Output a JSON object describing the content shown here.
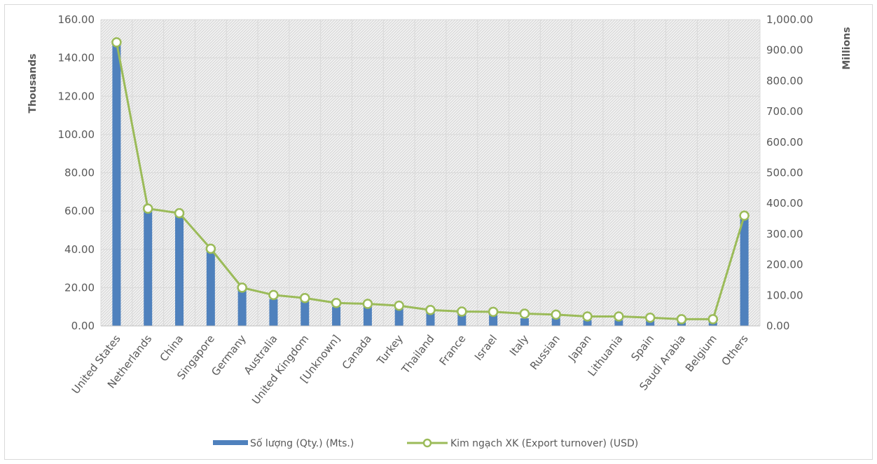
{
  "chart_data": {
    "type": "bar",
    "categories": [
      "United States",
      "Netherlands",
      "China",
      "Singapore",
      "Germany",
      "Australia",
      "United Kingdom",
      "[Unknown]",
      "Canada",
      "Turkey",
      "Thailand",
      "France",
      "Israel",
      "Italy",
      "Russian",
      "Japan",
      "Lithuania",
      "Spain",
      "Saudi Arabia",
      "Belgium",
      "Others"
    ],
    "series": [
      {
        "name": "Số lượng (Qty.) (Mts.)",
        "type": "bar",
        "axis": "left",
        "color": "#4f81bd",
        "values": [
          148,
          61,
          58,
          39,
          19,
          14,
          13,
          10,
          10,
          9,
          7,
          6,
          6,
          4,
          4,
          3,
          3,
          3,
          2,
          2,
          56
        ]
      },
      {
        "name": "Kim ngạch XK (Export turnover) (USD)",
        "type": "line",
        "axis": "right",
        "color": "#9bbb59",
        "values": [
          926,
          383,
          368,
          252,
          125,
          101,
          91,
          75,
          72,
          66,
          52,
          47,
          46,
          40,
          37,
          31,
          31,
          27,
          22,
          22,
          360
        ]
      }
    ],
    "y_left": {
      "label": "Thousands",
      "min": 0,
      "max": 160,
      "step": 20,
      "ticks": [
        "0.00",
        "20.00",
        "40.00",
        "60.00",
        "80.00",
        "100.00",
        "120.00",
        "140.00",
        "160.00"
      ]
    },
    "y_right": {
      "label": "Millions",
      "min": 0,
      "max": 1000,
      "step": 100,
      "ticks": [
        "0.00",
        "100.00",
        "200.00",
        "300.00",
        "400.00",
        "500.00",
        "600.00",
        "700.00",
        "800.00",
        "900.00",
        "1,000.00"
      ]
    },
    "grid": true,
    "plot_fill": "hatched-gray",
    "legend_position": "bottom"
  }
}
